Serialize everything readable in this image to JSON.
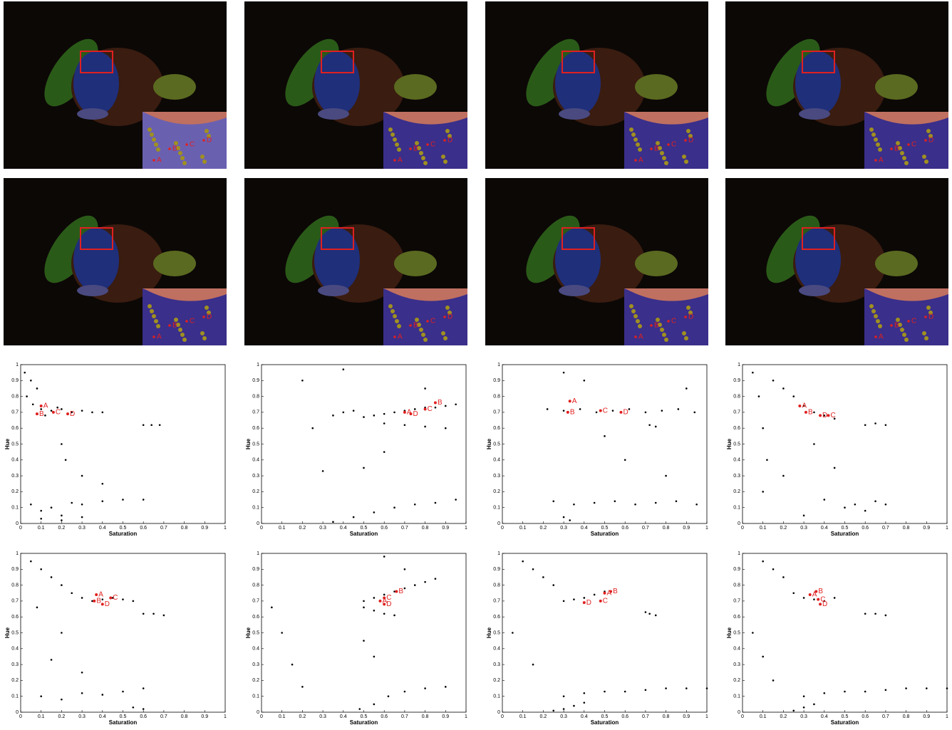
{
  "photos": [
    {
      "labels": [
        "A",
        "B",
        "C",
        "D"
      ]
    },
    {
      "labels": [
        "A",
        "B",
        "C",
        "D"
      ]
    },
    {
      "labels": [
        "A",
        "B",
        "C",
        "D"
      ]
    },
    {
      "labels": [
        "A",
        "B",
        "C",
        "D"
      ]
    },
    {
      "labels": [
        "A",
        "B",
        "C",
        "D"
      ]
    },
    {
      "labels": [
        "A",
        "B",
        "C",
        "D"
      ]
    },
    {
      "labels": [
        "A",
        "B",
        "C",
        "D"
      ]
    },
    {
      "labels": [
        "A",
        "B",
        "C",
        "D"
      ]
    }
  ],
  "chart_data": [
    {
      "type": "scatter",
      "xlabel": "Saturation",
      "ylabel": "Hue",
      "color": "#000000",
      "annotation_color": "#e02020",
      "xlim": [
        0,
        1
      ],
      "ylim": [
        0,
        1
      ],
      "xticks": [
        0,
        0.1,
        0.2,
        0.3,
        0.4,
        0.5,
        0.6,
        0.7,
        0.8,
        0.9,
        1
      ],
      "yticks": [
        0,
        0.1,
        0.2,
        0.3,
        0.4,
        0.5,
        0.6,
        0.7,
        0.8,
        0.9,
        1
      ],
      "x": [
        0.02,
        0.05,
        0.08,
        0.03,
        0.06,
        0.1,
        0.15,
        0.2,
        0.25,
        0.3,
        0.35,
        0.4,
        0.12,
        0.18,
        0.6,
        0.64,
        0.68,
        0.3,
        0.4,
        0.2,
        0.05,
        0.1,
        0.15,
        0.2,
        0.25,
        0.3,
        0.4,
        0.5,
        0.6,
        0.1,
        0.2,
        0.3,
        0.22
      ],
      "values": [
        0.95,
        0.9,
        0.85,
        0.8,
        0.75,
        0.72,
        0.71,
        0.72,
        0.7,
        0.71,
        0.7,
        0.7,
        0.68,
        0.73,
        0.62,
        0.62,
        0.62,
        0.3,
        0.25,
        0.5,
        0.12,
        0.08,
        0.1,
        0.05,
        0.13,
        0.12,
        0.14,
        0.15,
        0.15,
        0.03,
        0.02,
        0.04,
        0.4
      ],
      "annotations": [
        {
          "text": "A",
          "x": 0.1,
          "y": 0.74
        },
        {
          "text": "B",
          "x": 0.08,
          "y": 0.69
        },
        {
          "text": "C",
          "x": 0.16,
          "y": 0.7
        },
        {
          "text": "D",
          "x": 0.23,
          "y": 0.69
        }
      ]
    },
    {
      "type": "scatter",
      "xlabel": "Saturation",
      "ylabel": "Hue",
      "color": "#000000",
      "annotation_color": "#e02020",
      "xlim": [
        0,
        1
      ],
      "ylim": [
        0,
        1
      ],
      "xticks": [
        0,
        0.1,
        0.2,
        0.3,
        0.4,
        0.5,
        0.6,
        0.7,
        0.8,
        0.9,
        1
      ],
      "yticks": [
        0,
        0.1,
        0.2,
        0.3,
        0.4,
        0.5,
        0.6,
        0.7,
        0.8,
        0.9,
        1
      ],
      "x": [
        0.35,
        0.4,
        0.45,
        0.5,
        0.55,
        0.6,
        0.65,
        0.7,
        0.75,
        0.8,
        0.85,
        0.9,
        0.95,
        0.6,
        0.7,
        0.8,
        0.9,
        0.35,
        0.45,
        0.55,
        0.65,
        0.75,
        0.85,
        0.95,
        0.2,
        0.3,
        0.5,
        0.25,
        0.4,
        0.8,
        0.6
      ],
      "values": [
        0.68,
        0.7,
        0.71,
        0.67,
        0.68,
        0.69,
        0.7,
        0.71,
        0.72,
        0.73,
        0.73,
        0.74,
        0.75,
        0.63,
        0.62,
        0.61,
        0.6,
        0.01,
        0.04,
        0.07,
        0.1,
        0.12,
        0.13,
        0.15,
        0.9,
        0.33,
        0.35,
        0.6,
        0.97,
        0.85,
        0.45
      ],
      "annotations": [
        {
          "text": "A",
          "x": 0.7,
          "y": 0.7
        },
        {
          "text": "B",
          "x": 0.85,
          "y": 0.76
        },
        {
          "text": "C",
          "x": 0.8,
          "y": 0.72
        },
        {
          "text": "D",
          "x": 0.73,
          "y": 0.69
        }
      ]
    },
    {
      "type": "scatter",
      "xlabel": "Saturation",
      "ylabel": "Hue",
      "color": "#000000",
      "annotation_color": "#e02020",
      "xlim": [
        0,
        1
      ],
      "ylim": [
        0,
        1
      ],
      "xticks": [
        0,
        0.1,
        0.2,
        0.3,
        0.4,
        0.5,
        0.6,
        0.7,
        0.8,
        0.9,
        1
      ],
      "yticks": [
        0,
        0.1,
        0.2,
        0.3,
        0.4,
        0.5,
        0.6,
        0.7,
        0.8,
        0.9,
        1
      ],
      "x": [
        0.22,
        0.3,
        0.38,
        0.46,
        0.54,
        0.62,
        0.7,
        0.78,
        0.86,
        0.94,
        0.25,
        0.35,
        0.45,
        0.55,
        0.65,
        0.75,
        0.85,
        0.95,
        0.3,
        0.33,
        0.72,
        0.75,
        0.4,
        0.6,
        0.8,
        0.5,
        0.3,
        0.9
      ],
      "values": [
        0.72,
        0.71,
        0.72,
        0.7,
        0.71,
        0.72,
        0.7,
        0.71,
        0.72,
        0.7,
        0.14,
        0.12,
        0.13,
        0.14,
        0.12,
        0.13,
        0.14,
        0.12,
        0.04,
        0.02,
        0.62,
        0.61,
        0.9,
        0.4,
        0.3,
        0.55,
        0.95,
        0.85
      ],
      "annotations": [
        {
          "text": "A",
          "x": 0.33,
          "y": 0.77
        },
        {
          "text": "B",
          "x": 0.32,
          "y": 0.7
        },
        {
          "text": "C",
          "x": 0.48,
          "y": 0.71
        },
        {
          "text": "D",
          "x": 0.58,
          "y": 0.7
        }
      ]
    },
    {
      "type": "scatter",
      "xlabel": "Saturation",
      "ylabel": "Hue",
      "color": "#000000",
      "annotation_color": "#e02020",
      "xlim": [
        0,
        1
      ],
      "ylim": [
        0,
        1
      ],
      "xticks": [
        0,
        0.1,
        0.2,
        0.3,
        0.4,
        0.5,
        0.6,
        0.7,
        0.8,
        0.9,
        1
      ],
      "yticks": [
        0,
        0.1,
        0.2,
        0.3,
        0.4,
        0.5,
        0.6,
        0.7,
        0.8,
        0.9,
        1
      ],
      "x": [
        0.15,
        0.2,
        0.25,
        0.3,
        0.35,
        0.4,
        0.45,
        0.6,
        0.65,
        0.7,
        0.05,
        0.08,
        0.1,
        0.12,
        0.5,
        0.55,
        0.6,
        0.65,
        0.7,
        0.3,
        0.4,
        0.2,
        0.1,
        0.35,
        0.45
      ],
      "values": [
        0.9,
        0.85,
        0.8,
        0.74,
        0.7,
        0.68,
        0.66,
        0.62,
        0.63,
        0.62,
        0.95,
        0.8,
        0.6,
        0.4,
        0.1,
        0.12,
        0.08,
        0.14,
        0.12,
        0.05,
        0.15,
        0.3,
        0.2,
        0.5,
        0.35
      ],
      "annotations": [
        {
          "text": "A",
          "x": 0.28,
          "y": 0.74
        },
        {
          "text": "B",
          "x": 0.31,
          "y": 0.7
        },
        {
          "text": "C",
          "x": 0.42,
          "y": 0.68
        },
        {
          "text": "D",
          "x": 0.38,
          "y": 0.68
        }
      ]
    },
    {
      "type": "scatter",
      "xlabel": "Saturation",
      "ylabel": "Hue",
      "color": "#000000",
      "annotation_color": "#e02020",
      "xlim": [
        0,
        1
      ],
      "ylim": [
        0,
        1
      ],
      "xticks": [
        0,
        0.1,
        0.2,
        0.3,
        0.4,
        0.5,
        0.6,
        0.7,
        0.8,
        0.9,
        1
      ],
      "yticks": [
        0,
        0.1,
        0.2,
        0.3,
        0.4,
        0.5,
        0.6,
        0.7,
        0.8,
        0.9,
        1
      ],
      "x": [
        0.05,
        0.1,
        0.15,
        0.2,
        0.25,
        0.3,
        0.35,
        0.4,
        0.45,
        0.5,
        0.55,
        0.6,
        0.65,
        0.7,
        0.1,
        0.2,
        0.3,
        0.4,
        0.5,
        0.6,
        0.55,
        0.6,
        0.3,
        0.2,
        0.08,
        0.15
      ],
      "values": [
        0.95,
        0.9,
        0.85,
        0.8,
        0.75,
        0.72,
        0.7,
        0.71,
        0.72,
        0.71,
        0.7,
        0.62,
        0.62,
        0.61,
        0.1,
        0.08,
        0.12,
        0.11,
        0.13,
        0.15,
        0.03,
        0.02,
        0.25,
        0.5,
        0.66,
        0.33
      ],
      "annotations": [
        {
          "text": "A",
          "x": 0.37,
          "y": 0.74
        },
        {
          "text": "B",
          "x": 0.36,
          "y": 0.7
        },
        {
          "text": "C",
          "x": 0.44,
          "y": 0.72
        },
        {
          "text": "D",
          "x": 0.4,
          "y": 0.68
        }
      ]
    },
    {
      "type": "scatter",
      "xlabel": "Saturation",
      "ylabel": "Hue",
      "color": "#000000",
      "annotation_color": "#e02020",
      "xlim": [
        0,
        1
      ],
      "ylim": [
        0,
        1
      ],
      "xticks": [
        0,
        0.1,
        0.2,
        0.3,
        0.4,
        0.5,
        0.6,
        0.7,
        0.8,
        0.9,
        1
      ],
      "yticks": [
        0,
        0.1,
        0.2,
        0.3,
        0.4,
        0.5,
        0.6,
        0.7,
        0.8,
        0.9,
        1
      ],
      "x": [
        0.5,
        0.55,
        0.6,
        0.65,
        0.7,
        0.75,
        0.8,
        0.85,
        0.5,
        0.55,
        0.6,
        0.65,
        0.48,
        0.55,
        0.62,
        0.7,
        0.8,
        0.9,
        0.05,
        0.1,
        0.15,
        0.2,
        0.6,
        0.7,
        0.55,
        0.5
      ],
      "values": [
        0.7,
        0.72,
        0.74,
        0.76,
        0.78,
        0.8,
        0.82,
        0.84,
        0.66,
        0.64,
        0.62,
        0.61,
        0.02,
        0.05,
        0.1,
        0.13,
        0.15,
        0.16,
        0.66,
        0.5,
        0.3,
        0.16,
        0.98,
        0.9,
        0.35,
        0.45
      ],
      "annotations": [
        {
          "text": "A",
          "x": 0.58,
          "y": 0.7
        },
        {
          "text": "B",
          "x": 0.66,
          "y": 0.76
        },
        {
          "text": "C",
          "x": 0.6,
          "y": 0.72
        },
        {
          "text": "D",
          "x": 0.6,
          "y": 0.68
        }
      ]
    },
    {
      "type": "scatter",
      "xlabel": "Saturation",
      "ylabel": "Hue",
      "color": "#000000",
      "annotation_color": "#e02020",
      "xlim": [
        0,
        1
      ],
      "ylim": [
        0,
        1
      ],
      "xticks": [
        0,
        0.1,
        0.2,
        0.3,
        0.4,
        0.5,
        0.6,
        0.7,
        0.8,
        0.9,
        1
      ],
      "yticks": [
        0,
        0.1,
        0.2,
        0.3,
        0.4,
        0.5,
        0.6,
        0.7,
        0.8,
        0.9,
        1
      ],
      "x": [
        0.1,
        0.15,
        0.2,
        0.25,
        0.3,
        0.35,
        0.4,
        0.45,
        0.5,
        0.7,
        0.72,
        0.75,
        0.3,
        0.4,
        0.5,
        0.6,
        0.7,
        0.8,
        0.9,
        1,
        0.25,
        0.3,
        0.35,
        0.4,
        0.05,
        0.15
      ],
      "values": [
        0.95,
        0.9,
        0.85,
        0.8,
        0.7,
        0.71,
        0.72,
        0.74,
        0.76,
        0.63,
        0.62,
        0.61,
        0.1,
        0.12,
        0.13,
        0.13,
        0.14,
        0.15,
        0.15,
        0.15,
        0.01,
        0.02,
        0.04,
        0.06,
        0.5,
        0.3
      ],
      "annotations": [
        {
          "text": "A",
          "x": 0.5,
          "y": 0.75
        },
        {
          "text": "B",
          "x": 0.53,
          "y": 0.76
        },
        {
          "text": "C",
          "x": 0.48,
          "y": 0.7
        },
        {
          "text": "D",
          "x": 0.4,
          "y": 0.69
        }
      ]
    },
    {
      "type": "scatter",
      "xlabel": "Saturation",
      "ylabel": "Hue",
      "color": "#000000",
      "annotation_color": "#e02020",
      "xlim": [
        0,
        1
      ],
      "ylim": [
        0,
        1
      ],
      "xticks": [
        0,
        0.1,
        0.2,
        0.3,
        0.4,
        0.5,
        0.6,
        0.7,
        0.8,
        0.9,
        1
      ],
      "yticks": [
        0,
        0.1,
        0.2,
        0.3,
        0.4,
        0.5,
        0.6,
        0.7,
        0.8,
        0.9,
        1
      ],
      "x": [
        0.1,
        0.15,
        0.2,
        0.25,
        0.3,
        0.35,
        0.4,
        0.45,
        0.6,
        0.65,
        0.7,
        0.3,
        0.4,
        0.5,
        0.6,
        0.7,
        0.8,
        0.9,
        1,
        0.25,
        0.3,
        0.35,
        0.05,
        0.1,
        0.15
      ],
      "values": [
        0.95,
        0.9,
        0.85,
        0.75,
        0.72,
        0.71,
        0.7,
        0.72,
        0.62,
        0.62,
        0.61,
        0.1,
        0.12,
        0.13,
        0.13,
        0.14,
        0.15,
        0.15,
        0.15,
        0.01,
        0.03,
        0.05,
        0.5,
        0.35,
        0.2
      ],
      "annotations": [
        {
          "text": "A",
          "x": 0.33,
          "y": 0.74
        },
        {
          "text": "B",
          "x": 0.36,
          "y": 0.76
        },
        {
          "text": "C",
          "x": 0.37,
          "y": 0.71
        },
        {
          "text": "D",
          "x": 0.38,
          "y": 0.68
        }
      ]
    }
  ]
}
